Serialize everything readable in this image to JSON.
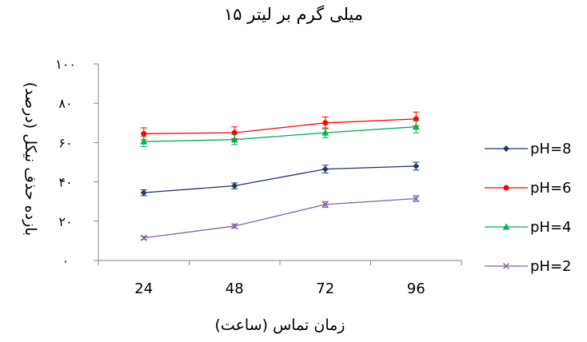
{
  "chart_data": {
    "type": "line",
    "title": "۱۵ میلی گرم بر لیتر",
    "xlabel": "زمان تماس (ساعت)",
    "ylabel": "بازده حذف نیکل (درصد)",
    "categories": [
      "24",
      "48",
      "72",
      "96"
    ],
    "y_tick_labels": [
      "۰",
      "۲۰",
      "۴۰",
      "۶۰",
      "۸۰",
      "۱۰۰"
    ],
    "ylim": [
      0,
      100
    ],
    "y_ticks": [
      0,
      20,
      40,
      60,
      80,
      100
    ],
    "grid": false,
    "legend_position": "right",
    "series": [
      {
        "name": "pH=8",
        "values": [
          34.5,
          38,
          46.5,
          48
        ],
        "errors": [
          1.5,
          1.5,
          2,
          2
        ],
        "color": "#1f3864",
        "marker": "diamond"
      },
      {
        "name": "pH=6",
        "values": [
          64.5,
          65,
          70,
          72
        ],
        "errors": [
          3,
          3,
          3,
          3.5
        ],
        "color": "#ff0000",
        "marker": "circle"
      },
      {
        "name": "pH=4",
        "values": [
          60.5,
          61.5,
          65,
          68
        ],
        "errors": [
          2.5,
          2.5,
          2.5,
          3
        ],
        "color": "#00b050",
        "marker": "triangle"
      },
      {
        "name": "pH=2",
        "values": [
          11.5,
          17.5,
          28.5,
          31.5
        ],
        "errors": [
          0.8,
          1,
          1.5,
          1.5
        ],
        "color": "#8064a2",
        "marker": "x"
      }
    ]
  }
}
